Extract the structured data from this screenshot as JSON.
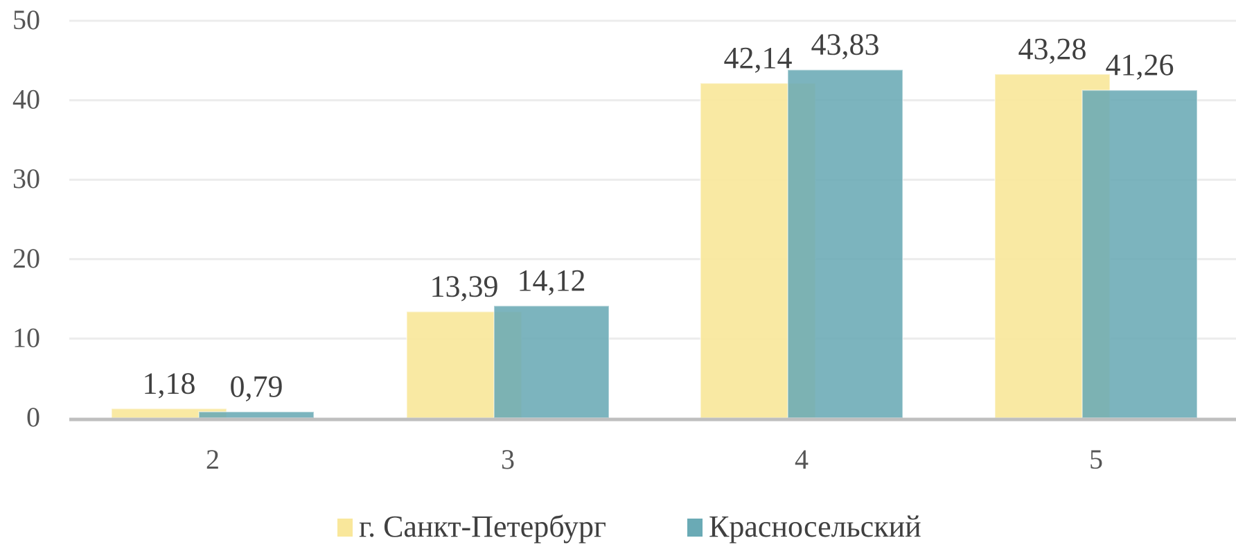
{
  "chart_data": {
    "type": "bar",
    "categories": [
      "2",
      "3",
      "4",
      "5"
    ],
    "series": [
      {
        "name": "г. Санкт-Петербург",
        "values": [
          1.18,
          13.39,
          42.14,
          43.28
        ],
        "labels": [
          "1,18",
          "13,39",
          "42,14",
          "43,28"
        ],
        "color": "#f9e79b"
      },
      {
        "name": "Красносельский",
        "values": [
          0.79,
          14.12,
          43.83,
          41.26
        ],
        "labels": [
          "0,79",
          "14,12",
          "43,83",
          "41,26"
        ],
        "color": "#6aaab5"
      }
    ],
    "yticks": [
      "0",
      "10",
      "20",
      "30",
      "40",
      "50"
    ],
    "ylim": [
      0,
      50
    ],
    "grid": true,
    "legend": "bottom"
  }
}
